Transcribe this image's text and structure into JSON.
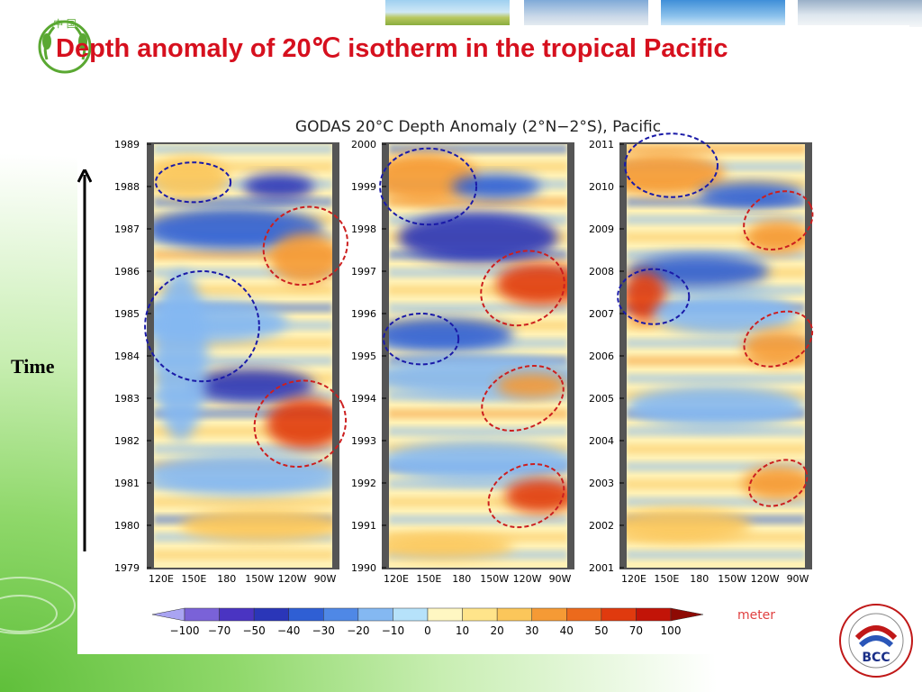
{
  "slide": {
    "title": "Depth anomaly of 20℃ isotherm in the tropical Pacific",
    "time_label": "Time",
    "logo_text": "中 国",
    "bcc_text": "BCC"
  },
  "chart_data": {
    "type": "heatmap",
    "title": "GODAS 20°C Depth Anomaly (2°N−2°S), Pacific",
    "x_tick_labels": [
      "120E",
      "150E",
      "180",
      "150W",
      "120W",
      "90W"
    ],
    "panels": [
      {
        "years": [
          "1979",
          "1980",
          "1981",
          "1982",
          "1983",
          "1984",
          "1985",
          "1986",
          "1987",
          "1988",
          "1989"
        ]
      },
      {
        "years": [
          "1990",
          "1991",
          "1992",
          "1993",
          "1994",
          "1995",
          "1996",
          "1997",
          "1998",
          "1999",
          "2000"
        ]
      },
      {
        "years": [
          "2001",
          "2002",
          "2003",
          "2004",
          "2005",
          "2006",
          "2007",
          "2008",
          "2009",
          "2010",
          "2011"
        ]
      }
    ],
    "colorbar": {
      "unit": "meter",
      "labels": [
        "−100",
        "−70",
        "−50",
        "−40",
        "−30",
        "−20",
        "−10",
        "0",
        "10",
        "20",
        "30",
        "40",
        "50",
        "70",
        "100"
      ],
      "colors": [
        "#a9a4f2",
        "#7a62d8",
        "#4a34c2",
        "#2a36b8",
        "#2f5fd4",
        "#4f88e6",
        "#84b8f2",
        "#b6e2fa",
        "#fff7c2",
        "#ffe48a",
        "#fbc65a",
        "#f59a35",
        "#ec6a1c",
        "#e03a0e",
        "#c21408",
        "#8e0a04"
      ]
    },
    "highlights": {
      "warm_circle_color": "#cc1f1f",
      "cold_circle_color": "#1a1aa8"
    }
  }
}
